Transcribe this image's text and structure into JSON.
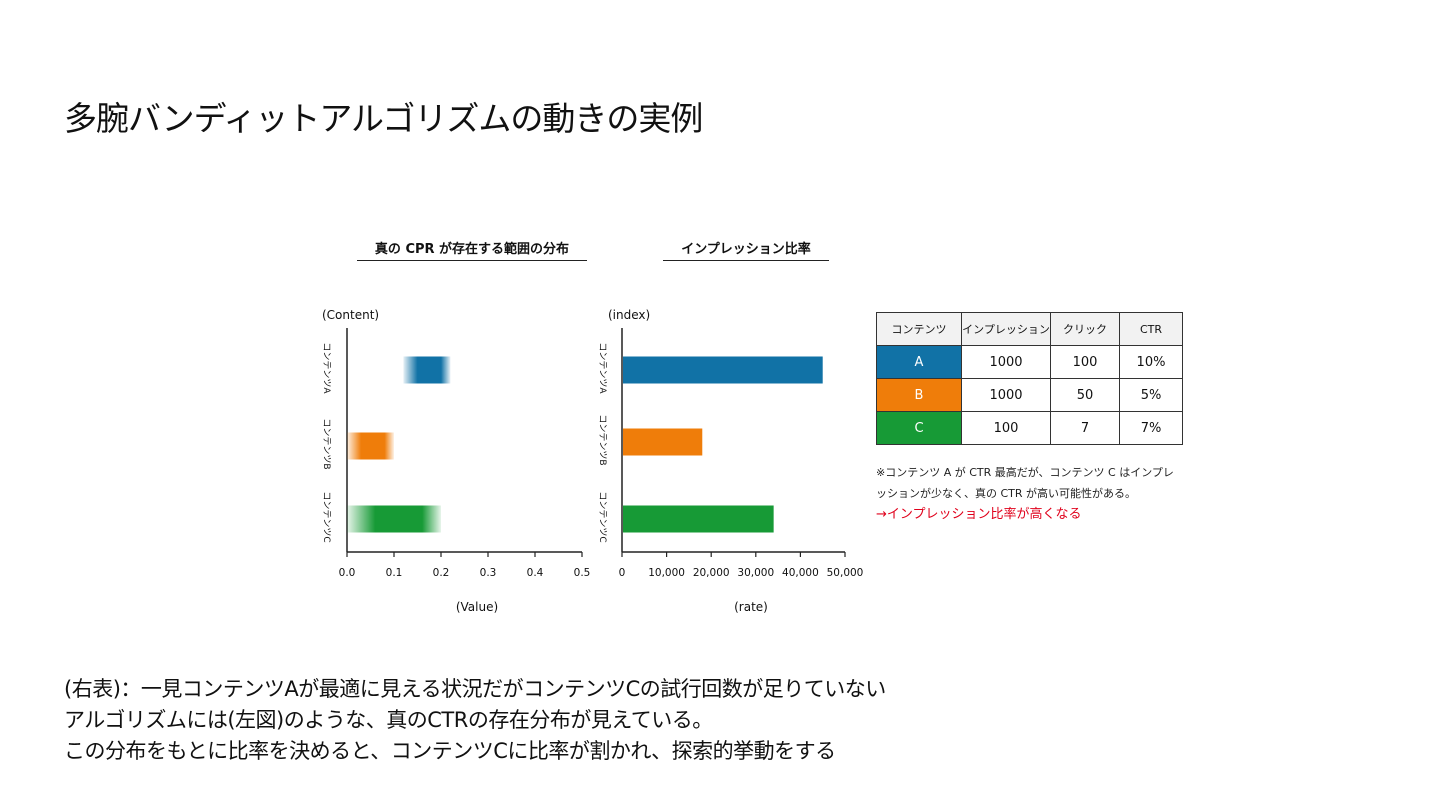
{
  "page": {
    "title": "多腕バンディットアルゴリズムの動きの実例"
  },
  "chart_data": [
    {
      "type": "bar",
      "title": "真の CPR が存在する範囲の分布",
      "ylabel": "(Content)",
      "xlabel": "(Value)",
      "categories": [
        "コンテンツA",
        "コンテンツB",
        "コンテンツC"
      ],
      "ranges": [
        [
          0.12,
          0.22
        ],
        [
          0.0,
          0.1
        ],
        [
          0.0,
          0.2
        ]
      ],
      "colors": [
        "#1172a6",
        "#ef7d0a",
        "#179a36"
      ],
      "xlim": [
        0,
        0.5
      ],
      "xticks": [
        "0.0",
        "0.1",
        "0.2",
        "0.3",
        "0.4",
        "0.5"
      ],
      "grid": false
    },
    {
      "type": "bar",
      "title": "インプレッション比率",
      "ylabel": "(index)",
      "xlabel": "(rate)",
      "categories": [
        "コンテンツA",
        "コンテンツB",
        "コンテンツC"
      ],
      "values": [
        45000,
        18000,
        34000
      ],
      "colors": [
        "#1172a6",
        "#ef7d0a",
        "#179a36"
      ],
      "xlim": [
        0,
        50000
      ],
      "xticks": [
        "0",
        "10,000",
        "20,000",
        "30,000",
        "40,000",
        "50,000"
      ],
      "grid": false
    }
  ],
  "table": {
    "headers": [
      "コンテンツ",
      "インプレッション",
      "クリック",
      "CTR"
    ],
    "rows": [
      {
        "label": "A",
        "color": "#1172a6",
        "impressions": "1000",
        "clicks": "100",
        "ctr": "10%"
      },
      {
        "label": "B",
        "color": "#ef7d0a",
        "impressions": "1000",
        "clicks": "50",
        "ctr": "5%"
      },
      {
        "label": "C",
        "color": "#179a36",
        "impressions": "100",
        "clicks": "7",
        "ctr": "7%"
      }
    ]
  },
  "note": {
    "line1": "※コンテンツ A が CTR 最高だが、コンテンツ C はインプレ",
    "line2": "ッションが少なく、真の CTR が高い可能性がある。",
    "highlight": "→インプレッション比率が高くなる",
    "highlight_color": "#e0001b"
  },
  "body_text": {
    "line1": "(右表)：一見コンテンツAが最適に見える状況だがコンテンツCの試行回数が足りていない",
    "line2": "アルゴリズムには(左図)のような、真のCTRの存在分布が見えている。",
    "line3": "この分布をもとに比率を決めると、コンテンツCに比率が割かれ、探索的挙動をする"
  }
}
